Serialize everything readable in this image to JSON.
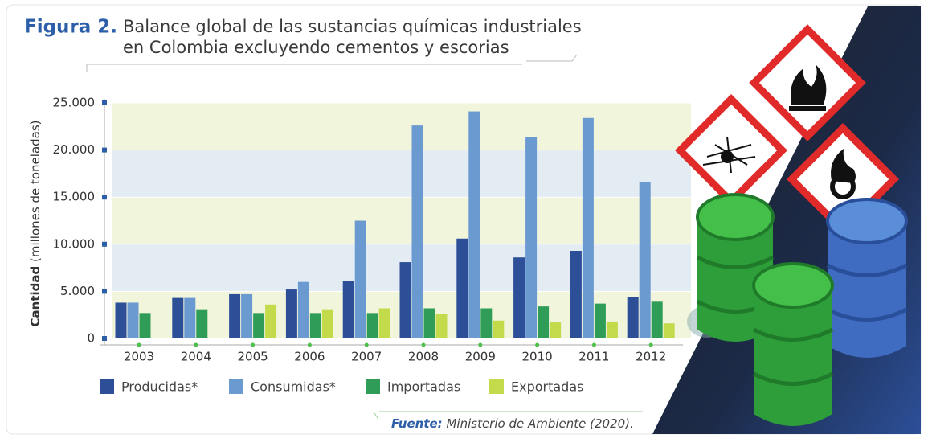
{
  "chart_data": {
    "type": "bar",
    "figure_label": "Figura 2.",
    "title_lines": [
      "Balance global de las sustancias químicas industriales",
      "en Colombia excluyendo cementos y escorias"
    ],
    "ylabel_bold": "Cantidad",
    "ylabel_rest": "(millones de toneladas)",
    "categories": [
      "2003",
      "2004",
      "2005",
      "2006",
      "2007",
      "2008",
      "2009",
      "2010",
      "2011",
      "2012"
    ],
    "series": [
      {
        "name": "Producidas*",
        "color": "#2c4f98",
        "values": [
          3800,
          4300,
          4700,
          5200,
          6100,
          8100,
          10600,
          8600,
          9300,
          4400
        ]
      },
      {
        "name": "Consumidas*",
        "color": "#6b9ad0",
        "values": [
          3800,
          4300,
          4700,
          6000,
          12500,
          22600,
          24100,
          21400,
          23400,
          16600
        ]
      },
      {
        "name": "Importadas",
        "color": "#2f9d57",
        "values": [
          2700,
          3100,
          2700,
          2700,
          2700,
          3200,
          3200,
          3400,
          3700,
          3900
        ]
      },
      {
        "name": "Exportadas",
        "color": "#c3da4b",
        "values": [
          50,
          50,
          3600,
          3100,
          3200,
          2600,
          1900,
          1700,
          1800,
          1600
        ]
      }
    ],
    "ylim": [
      0,
      25000
    ],
    "yticks": [
      0,
      {
        "value": 5000,
        "label": "5.000"
      },
      {
        "value": 10000,
        "label": "10.000"
      },
      {
        "value": 15000,
        "label": "15.000"
      },
      {
        "value": 20000,
        "label": "20.000"
      },
      {
        "value": 25000,
        "label": "25.000"
      }
    ],
    "band_colors": [
      "#f1f5dc",
      "#e3ebf3"
    ],
    "source_label": "Fuente:",
    "source_text": "Ministerio de Ambiente (2020)."
  }
}
